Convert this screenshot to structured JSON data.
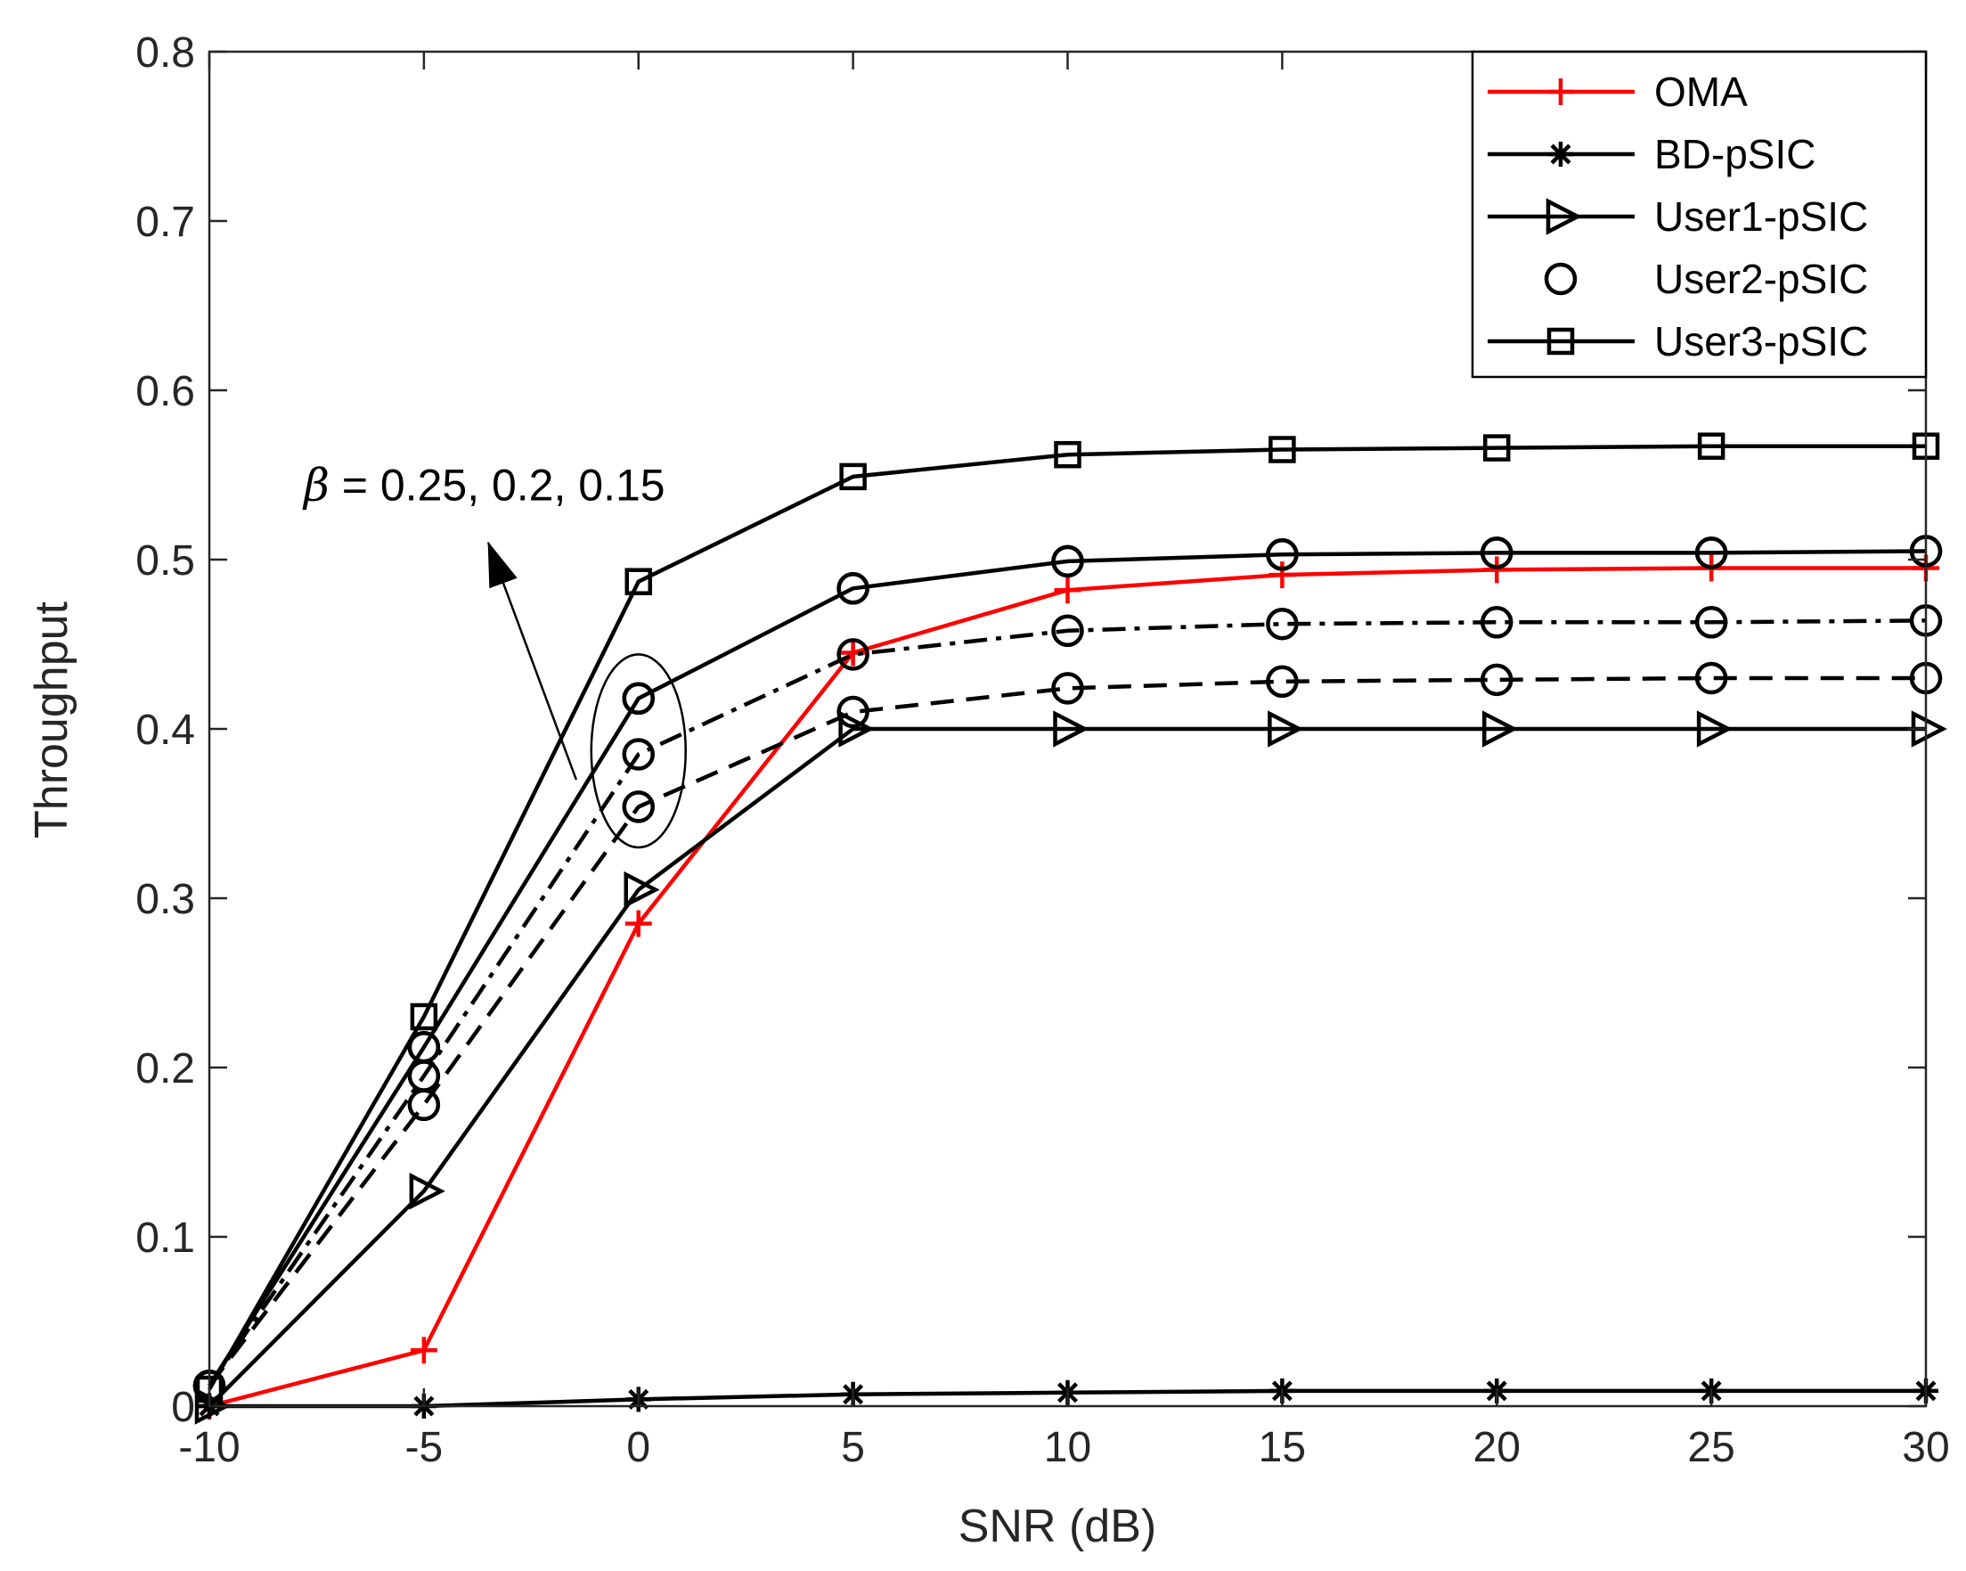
{
  "chart_data": {
    "type": "line",
    "title": "",
    "xlabel": "SNR (dB)",
    "ylabel": "Throughput",
    "x": [
      -10,
      -5,
      0,
      5,
      10,
      15,
      20,
      25,
      30
    ],
    "xlim": [
      -10,
      30
    ],
    "ylim": [
      0,
      0.8
    ],
    "xticks": [
      -10,
      -5,
      0,
      5,
      10,
      15,
      20,
      25,
      30
    ],
    "xtick_labels": [
      "-10",
      "-5",
      "0",
      "5",
      "10",
      "15",
      "20",
      "25",
      "30"
    ],
    "yticks": [
      0,
      0.1,
      0.2,
      0.3,
      0.4,
      0.5,
      0.6,
      0.7,
      0.8
    ],
    "ytick_labels": [
      "0",
      "0.1",
      "0.2",
      "0.3",
      "0.4",
      "0.5",
      "0.6",
      "0.7",
      "0.8"
    ],
    "grid": false,
    "legend_position": "top-right",
    "series": [
      {
        "name": "OMA",
        "legend": true,
        "color": "#ff0000",
        "marker": "plus",
        "dash": "solid",
        "values": [
          0.0,
          0.033,
          0.285,
          0.445,
          0.482,
          0.491,
          0.494,
          0.495,
          0.495
        ]
      },
      {
        "name": "BD-pSIC",
        "legend": true,
        "color": "#000000",
        "marker": "asterisk",
        "dash": "solid",
        "values": [
          0.0,
          0.0,
          0.004,
          0.007,
          0.008,
          0.009,
          0.009,
          0.009,
          0.009
        ]
      },
      {
        "name": "User1-pSIC",
        "legend": true,
        "color": "#000000",
        "marker": "triangle-right",
        "dash": "solid",
        "values": [
          0.0,
          0.127,
          0.305,
          0.4,
          0.4,
          0.4,
          0.4,
          0.4,
          0.4
        ]
      },
      {
        "name": "User2-pSIC",
        "legend": true,
        "color": "#000000",
        "marker": "circle",
        "dash": "none",
        "values": [
          0.012,
          0.212,
          0.418,
          0.483,
          0.499,
          0.503,
          0.504,
          0.504,
          0.505
        ]
      },
      {
        "name": "User3-pSIC",
        "legend": true,
        "color": "#000000",
        "marker": "square",
        "dash": "solid",
        "values": [
          0.01,
          0.23,
          0.487,
          0.549,
          0.562,
          0.565,
          0.566,
          0.567,
          0.567
        ]
      },
      {
        "name": "User2-pSIC beta=0.25",
        "legend": false,
        "color": "#000000",
        "marker": "circle",
        "dash": "solid",
        "values": [
          0.012,
          0.212,
          0.418,
          0.483,
          0.499,
          0.503,
          0.504,
          0.504,
          0.505
        ]
      },
      {
        "name": "User2-pSIC beta=0.2",
        "legend": false,
        "color": "#000000",
        "marker": "circle",
        "dash": "dashdot",
        "values": [
          0.012,
          0.195,
          0.385,
          0.444,
          0.458,
          0.462,
          0.463,
          0.463,
          0.464
        ]
      },
      {
        "name": "User2-pSIC beta=0.15",
        "legend": false,
        "color": "#000000",
        "marker": "circle",
        "dash": "dashed",
        "values": [
          0.012,
          0.178,
          0.354,
          0.41,
          0.424,
          0.428,
          0.429,
          0.43,
          0.43
        ]
      }
    ],
    "annotation": {
      "text": " = 0.25, 0.2, 0.15",
      "symbol": "β",
      "ellipse_center": [
        0,
        0.387
      ],
      "ellipse_radius_x": 1.1,
      "ellipse_radius_y": 0.057,
      "arrow_from": [
        -1.45,
        0.37
      ],
      "arrow_to": [
        -3.5,
        0.51
      ],
      "text_anchor_point": [
        -7.8,
        0.535
      ]
    }
  }
}
